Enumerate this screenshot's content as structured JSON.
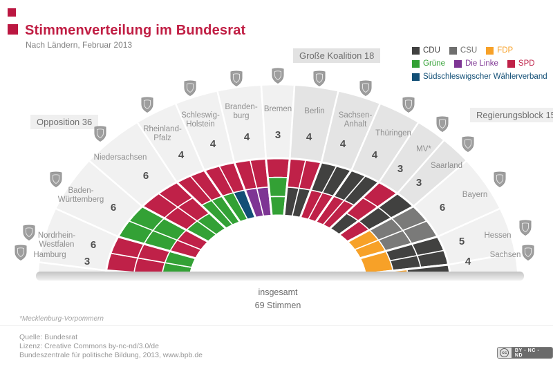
{
  "header": {
    "title": "Stimmenverteilung im Bundesrat",
    "subtitle": "Nach Ländern, Februar 2013"
  },
  "legend": {
    "rows": [
      [
        {
          "label": "CDU",
          "color": "#414140"
        },
        {
          "label": "CSU",
          "color": "#6f6f6e"
        },
        {
          "label": "FDP",
          "color": "#f7a128"
        }
      ],
      [
        {
          "label": "Grüne",
          "color": "#33a135"
        },
        {
          "label": "Die Linke",
          "color": "#7e3594"
        },
        {
          "label": "SPD",
          "color": "#bf2148"
        }
      ],
      [
        {
          "label": "Südschleswigscher Wählerverband",
          "color": "#124f76"
        }
      ]
    ]
  },
  "chart_data": {
    "type": "hemicycle",
    "title": "Stimmenverteilung im Bundesrat",
    "subtitle": "Nach Ländern, Februar 2013",
    "total_votes": 69,
    "total": {
      "line1": "insgesamt",
      "line2": "69 Stimmen"
    },
    "footnote": "*Mecklenburg-Vorpommern",
    "legend_position": "top-right",
    "groups": [
      {
        "id": "opposition",
        "label": "Opposition 36",
        "votes": 36,
        "ring_color": "#f1f1f1"
      },
      {
        "id": "grosse-koalition",
        "label": "Große Koalition 18",
        "votes": 18,
        "ring_color": "#e4e4e4"
      },
      {
        "id": "regierungsblock",
        "label": "Regierungsblock 15",
        "votes": 15,
        "ring_color": "#f1f1f1"
      }
    ],
    "parties": {
      "S": {
        "name": "SPD",
        "color": "#bf2148"
      },
      "C": {
        "name": "CDU",
        "color": "#414140"
      },
      "U": {
        "name": "CSU",
        "color": "#7a7a79"
      },
      "F": {
        "name": "FDP",
        "color": "#f7a128"
      },
      "G": {
        "name": "Grüne",
        "color": "#33a135"
      },
      "L": {
        "name": "Die Linke",
        "color": "#7e3594"
      },
      "B": {
        "name": "Südschleswigscher Wählerverband",
        "color": "#124f76"
      }
    },
    "states": [
      {
        "id": "hamburg",
        "label_lines": [
          "Hamburg"
        ],
        "votes": 3,
        "group": 0,
        "seats": [
          [
            "S"
          ],
          [
            "S"
          ],
          [
            "S"
          ]
        ]
      },
      {
        "id": "nordrhein-westfalen",
        "label_lines": [
          "Nordrhein-",
          "Westfalen"
        ],
        "votes": 6,
        "group": 0,
        "seats": [
          [
            "S",
            "S"
          ],
          [
            "S",
            "S"
          ],
          [
            "G",
            "G"
          ]
        ]
      },
      {
        "id": "baden-wuerttemberg",
        "label_lines": [
          "Baden-",
          "Württemberg"
        ],
        "votes": 6,
        "group": 0,
        "seats": [
          [
            "G",
            "G"
          ],
          [
            "G",
            "G"
          ],
          [
            "S",
            "S"
          ]
        ]
      },
      {
        "id": "niedersachsen",
        "label_lines": [
          "Niedersachsen"
        ],
        "votes": 6,
        "group": 0,
        "seats": [
          [
            "S",
            "S"
          ],
          [
            "S",
            "S"
          ],
          [
            "G",
            "G"
          ]
        ]
      },
      {
        "id": "rheinland-pfalz",
        "label_lines": [
          "Rheinland-",
          "Pfalz"
        ],
        "votes": 4,
        "group": 0,
        "seats": [
          [
            "S",
            "S"
          ],
          [
            "G",
            "G"
          ]
        ]
      },
      {
        "id": "schleswig-holstein",
        "label_lines": [
          "Schleswig-",
          "Holstein"
        ],
        "votes": 4,
        "group": 0,
        "seats": [
          [
            "S",
            "S"
          ],
          [
            "G",
            "B"
          ]
        ]
      },
      {
        "id": "brandenburg",
        "label_lines": [
          "Branden-",
          "burg"
        ],
        "votes": 4,
        "group": 0,
        "seats": [
          [
            "S",
            "S"
          ],
          [
            "L",
            "L"
          ]
        ]
      },
      {
        "id": "bremen",
        "label_lines": [
          "Bremen"
        ],
        "votes": 3,
        "group": 0,
        "seats": [
          [
            "S"
          ],
          [
            "G"
          ],
          [
            "G"
          ]
        ]
      },
      {
        "id": "berlin",
        "label_lines": [
          "Berlin"
        ],
        "votes": 4,
        "group": 1,
        "seats": [
          [
            "S",
            "S"
          ],
          [
            "C",
            "C"
          ]
        ]
      },
      {
        "id": "sachsen-anhalt",
        "label_lines": [
          "Sachsen-",
          "Anhalt"
        ],
        "votes": 4,
        "group": 1,
        "seats": [
          [
            "C",
            "C"
          ],
          [
            "S",
            "S"
          ]
        ]
      },
      {
        "id": "thueringen",
        "label_lines": [
          "Thüringen"
        ],
        "votes": 4,
        "group": 1,
        "seats": [
          [
            "C",
            "C"
          ],
          [
            "S",
            "S"
          ]
        ]
      },
      {
        "id": "mecklenburg-vorpommern",
        "label_lines": [
          "MV*"
        ],
        "votes": 3,
        "group": 1,
        "seats": [
          [
            "S"
          ],
          [
            "S"
          ],
          [
            "C"
          ]
        ]
      },
      {
        "id": "saarland",
        "label_lines": [
          "Saarland"
        ],
        "votes": 3,
        "group": 1,
        "seats": [
          [
            "C"
          ],
          [
            "C"
          ],
          [
            "S"
          ]
        ]
      },
      {
        "id": "bayern",
        "label_lines": [
          "Bayern"
        ],
        "votes": 6,
        "group": 2,
        "seats": [
          [
            "U",
            "U"
          ],
          [
            "U",
            "U"
          ],
          [
            "F",
            "F"
          ]
        ]
      },
      {
        "id": "hessen",
        "label_lines": [
          "Hessen"
        ],
        "votes": 5,
        "group": 2,
        "seats": [
          [
            "C",
            "C"
          ],
          [
            "C",
            "C"
          ],
          [
            "F"
          ]
        ]
      },
      {
        "id": "sachsen",
        "label_lines": [
          "Sachsen"
        ],
        "votes": 4,
        "group": 2,
        "seats": [
          [
            "C",
            "C"
          ],
          [
            "F",
            "C"
          ]
        ]
      }
    ]
  },
  "footer": {
    "source_line1": "Quelle: Bundesrat",
    "source_line2": "Lizenz: Creative Commons by-nc-nd/3.0/de",
    "source_line3": "Bundeszentrale für politische Bildung, 2013, www.bpb.de",
    "license_badge": "BY - NC - ND",
    "cc_icon_text": "cc"
  }
}
